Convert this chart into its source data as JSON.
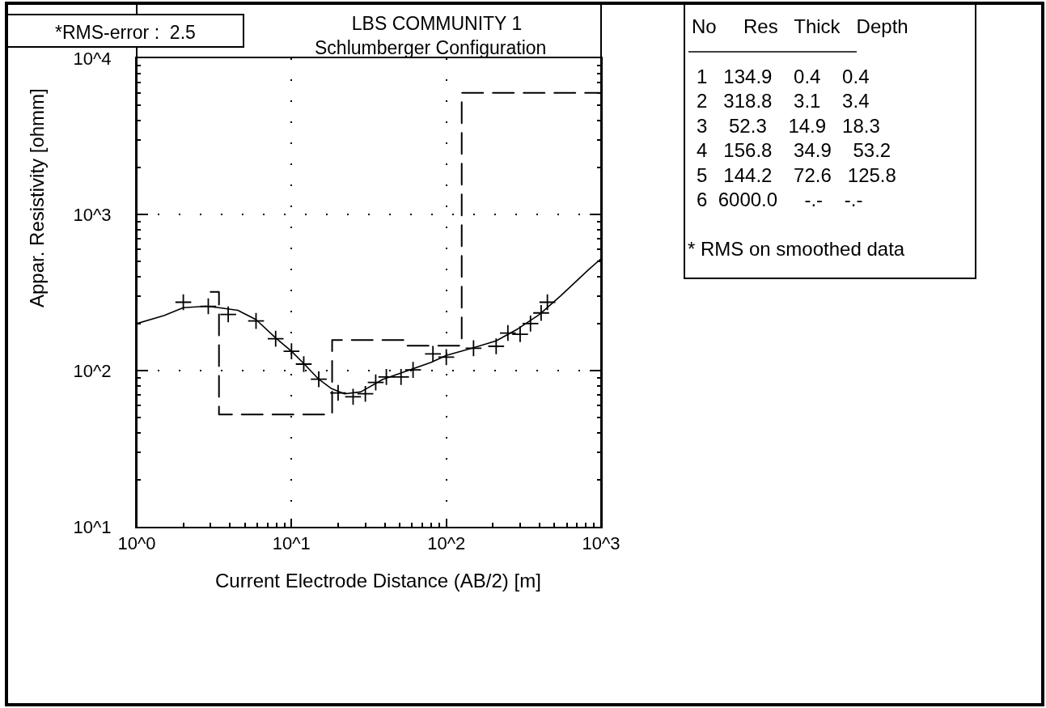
{
  "chart_data": [
    {
      "type": "scatter",
      "title": "LBS COMMUNITY 1",
      "subtitle": "Schlumberger Configuration",
      "xlabel": "Current Electrode Distance (AB/2) [m]",
      "ylabel": "Appar. Resistivity [ohmm]",
      "annotations": [
        "*RMS-error :  2.5"
      ],
      "log": "xy",
      "grid": true,
      "xlim": [
        1,
        1000
      ],
      "ylim": [
        10,
        10000
      ],
      "xticks": [
        {
          "value": 1,
          "label": "10^0"
        },
        {
          "value": 10,
          "label": "10^1"
        },
        {
          "value": 100,
          "label": "10^2"
        },
        {
          "value": 1000,
          "label": "10^3"
        }
      ],
      "yticks": [
        {
          "value": 10,
          "label": "10^1"
        },
        {
          "value": 100,
          "label": "10^2"
        },
        {
          "value": 1000,
          "label": "10^3"
        },
        {
          "value": 10000,
          "label": "10^4"
        }
      ],
      "series": [
        {
          "type": "step",
          "color": "#000000",
          "line_style": "dashed",
          "x": [
            3.0,
            3.4,
            18.3,
            53.2,
            125.8,
            1000
          ],
          "values": [
            318.8,
            52.3,
            156.8,
            144.2,
            6000.0,
            6000.0
          ]
        },
        {
          "type": "line",
          "color": "#000000",
          "line_style": "solid",
          "x": [
            1,
            1.5,
            2.0,
            2.8,
            3.4,
            4.5,
            5.9,
            7.9,
            10,
            12,
            15,
            18,
            22,
            28,
            39,
            58,
            80,
            100,
            150,
            210,
            290,
            400,
            550,
            840,
            1000
          ],
          "values": [
            200,
            225,
            253,
            258,
            253,
            243,
            212,
            162,
            133,
            111,
            88,
            77,
            71,
            73,
            88,
            101,
            113,
            125,
            140,
            155,
            185,
            229,
            302,
            448,
            520
          ]
        },
        {
          "type": "scatter",
          "color": "#000000",
          "marker": "cross",
          "x": [
            2.0,
            2.9,
            3.9,
            5.9,
            7.9,
            10,
            12,
            15,
            20,
            25,
            30,
            35,
            41,
            51,
            61,
            82,
            100,
            150,
            210,
            250,
            300,
            350,
            410,
            450
          ],
          "values": [
            274,
            258,
            229,
            208,
            160,
            133,
            110,
            88,
            72,
            68,
            71,
            84,
            91,
            91,
            101,
            128,
            122,
            139,
            143,
            174,
            171,
            200,
            234,
            274
          ]
        }
      ]
    },
    {
      "type": "other",
      "annotations": [
        "No     Res   Thick   Depth",
        "1   134.9    0.4    0.4",
        "2   318.8    3.1    3.4",
        "3    52.3    14.9   18.3",
        "4   156.8    34.9    53.2",
        "5   144.2    72.6   125.8",
        "6  6000.0     -.-    -.-",
        "* RMS on smoothed data"
      ]
    }
  ]
}
